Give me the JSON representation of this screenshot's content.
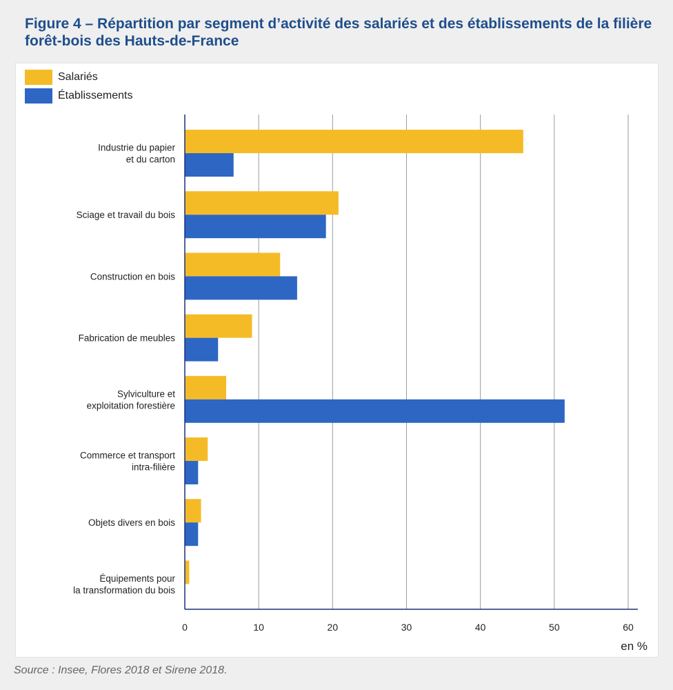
{
  "title": "Figure 4 – Répartition par segment d’activité des salariés et des établissements de la filière forêt-bois des Hauts-de-France",
  "source": "Source : Insee, Flores 2018 et Sirene 2018.",
  "legend": [
    {
      "label": "Salariés",
      "color": "#f5bb27"
    },
    {
      "label": "Établissements",
      "color": "#2d66c3"
    }
  ],
  "chart_data": {
    "type": "bar",
    "orientation": "horizontal",
    "title": "Figure 4 – Répartition par segment d’activité des salariés et des établissements de la filière forêt-bois des Hauts-de-France",
    "xlabel": "en %",
    "ylabel": "",
    "xlim": [
      0,
      60
    ],
    "xticks": [
      0,
      10,
      20,
      30,
      40,
      50,
      60
    ],
    "grid": true,
    "legend_position": "top-left",
    "categories": [
      [
        "Industrie du papier",
        "et du carton"
      ],
      [
        "Sciage et travail du bois"
      ],
      [
        "Construction en bois"
      ],
      [
        "Fabrication de meubles"
      ],
      [
        "Sylviculture et",
        "exploitation forestière"
      ],
      [
        "Commerce et transport",
        "intra-filière"
      ],
      [
        "Objets divers en bois"
      ],
      [
        "Équipements pour",
        "la transformation du bois"
      ]
    ],
    "series": [
      {
        "name": "Salariés",
        "color": "#f5bb27",
        "values": [
          45.8,
          20.8,
          12.9,
          9.1,
          5.6,
          3.1,
          2.2,
          0.6
        ]
      },
      {
        "name": "Établissements",
        "color": "#2d66c3",
        "values": [
          6.6,
          19.1,
          15.2,
          4.5,
          51.4,
          1.8,
          1.8,
          0.0
        ]
      }
    ]
  }
}
